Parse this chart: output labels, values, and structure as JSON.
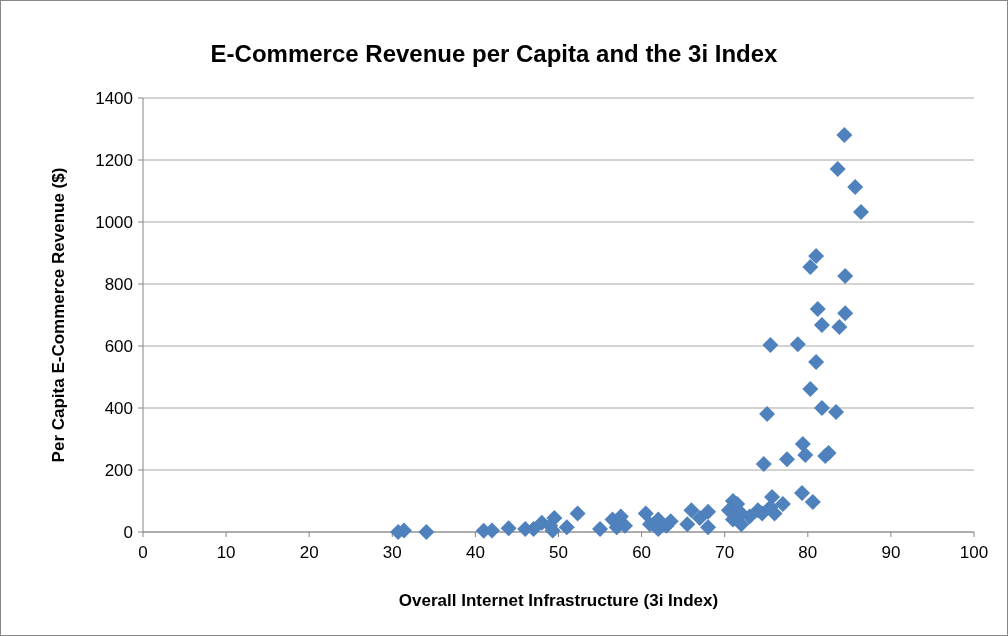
{
  "chart_data": {
    "type": "scatter",
    "title": "E-Commerce Revenue per Capita and the 3i Index",
    "xlabel": "Overall Internet Infrastructure (3i Index)",
    "ylabel": "Per Capita E-Commerce Revenue ($)",
    "xlim": [
      0,
      100
    ],
    "xticks": [
      0,
      10,
      20,
      30,
      40,
      50,
      60,
      70,
      80,
      90,
      100
    ],
    "ylim": [
      0,
      1400
    ],
    "yticks": [
      0,
      200,
      400,
      600,
      800,
      1000,
      1200,
      1400
    ],
    "grid": "y",
    "marker": "diamond",
    "series": [
      {
        "color": "#4f81bd",
        "x": [
          30.7,
          31.4,
          34.1,
          41,
          42,
          44,
          46,
          47,
          48,
          49,
          49.5,
          49.3,
          51,
          52.3,
          55,
          56.5,
          57.5,
          57,
          58,
          60.5,
          61,
          62,
          62,
          63,
          63.5,
          65.5,
          66,
          67,
          68,
          68,
          70.5,
          71,
          71,
          71.5,
          72,
          72,
          73,
          74,
          74.5,
          75.7,
          75.5,
          76,
          77,
          77.5,
          74.7,
          75.1,
          75.5,
          78.8,
          79.4,
          79.7,
          79.3,
          80.6,
          80.3,
          81,
          81.7,
          82.1,
          82.5,
          83.4,
          80.3,
          81,
          81.2,
          81.7,
          83.8,
          84.5,
          84.5,
          83.6,
          84.4,
          85.7,
          86.4
        ],
        "values": [
          0,
          5,
          0,
          4,
          5,
          12,
          10,
          10,
          30,
          20,
          45,
          5,
          15,
          60,
          10,
          40,
          50,
          15,
          20,
          60,
          25,
          40,
          10,
          20,
          35,
          25,
          70,
          45,
          65,
          15,
          70,
          100,
          40,
          90,
          60,
          25,
          50,
          70,
          60,
          113,
          80,
          60,
          90,
          235,
          219,
          381,
          603,
          606,
          284,
          248,
          126,
          97,
          461,
          548,
          400,
          245,
          255,
          387,
          855,
          890,
          719,
          668,
          661,
          826,
          706,
          1171,
          1281,
          1113,
          1032
        ]
      }
    ]
  }
}
